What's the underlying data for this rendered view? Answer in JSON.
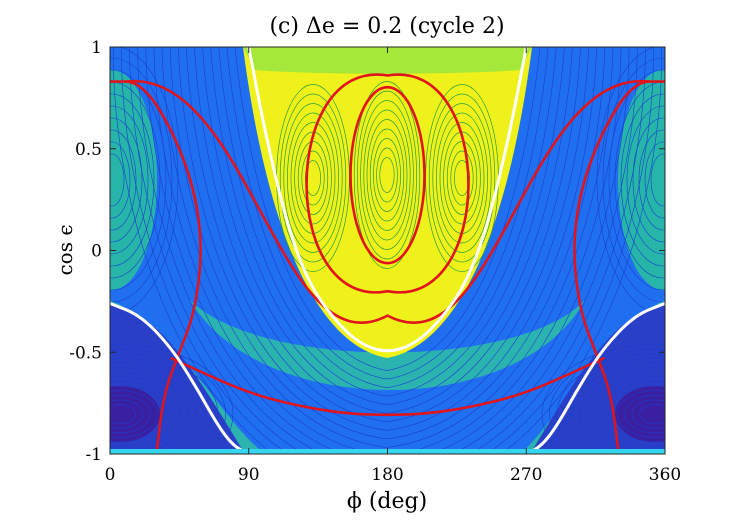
{
  "chart_data": {
    "type": "contour",
    "title": "(c) Δe = 0.2 (cycle 2)",
    "xlabel": "ϕ (deg)",
    "ylabel": "cos ϵ",
    "xlim": [
      0,
      360
    ],
    "ylim": [
      -1,
      1
    ],
    "xticks": [
      0,
      90,
      180,
      270,
      360
    ],
    "xtick_labels": [
      "0",
      "90",
      "180",
      "270",
      "360"
    ],
    "yticks": [
      -1,
      -0.5,
      0,
      0.5,
      1
    ],
    "ytick_labels": [
      "-1",
      "-0.5",
      "0",
      "0.5",
      "1"
    ],
    "grid": false,
    "colors": {
      "background_fill": "#2bb3b0",
      "low_well": "#3a1fa0",
      "band": "#1f6ff0",
      "inner_region": "#eef21a",
      "contour_line": "#1a3fd0",
      "separatrix": "#e0141c",
      "boundary": "#ffffff"
    },
    "forbidden_boundary": {
      "upper_x": [
        90,
        100,
        115,
        130,
        150,
        165,
        180,
        195,
        210,
        230,
        245,
        260,
        270
      ],
      "upper_y": [
        1.0,
        0.6,
        0.12,
        -0.18,
        -0.38,
        -0.47,
        -0.5,
        -0.47,
        -0.38,
        -0.18,
        0.12,
        0.6,
        1.0
      ],
      "lower_left_x": [
        0,
        20,
        40,
        55,
        70,
        80,
        90
      ],
      "lower_left_y": [
        -0.26,
        -0.32,
        -0.48,
        -0.66,
        -0.86,
        -0.96,
        -1.0
      ],
      "lower_right_x": [
        270,
        280,
        290,
        305,
        320,
        340,
        360
      ],
      "lower_right_y": [
        -1.0,
        -0.96,
        -0.86,
        -0.66,
        -0.48,
        -0.32,
        -0.26
      ]
    },
    "separatrices": [
      {
        "x": [
          40,
          60,
          90,
          120,
          150,
          180,
          210,
          240,
          270,
          300,
          320
        ],
        "y": [
          -0.53,
          -0.6,
          -0.7,
          -0.76,
          -0.8,
          -0.81,
          -0.8,
          -0.76,
          -0.7,
          -0.6,
          -0.53
        ]
      },
      {
        "x": [
          0,
          20,
          40,
          55,
          60,
          55,
          45,
          35,
          30
        ],
        "y": [
          0.83,
          0.83,
          0.6,
          0.3,
          0.0,
          -0.3,
          -0.5,
          -0.7,
          -1.0
        ]
      },
      {
        "x": [
          360,
          340,
          320,
          305,
          300,
          305,
          315,
          325,
          330
        ],
        "y": [
          0.83,
          0.83,
          0.6,
          0.3,
          0.0,
          -0.3,
          -0.5,
          -0.7,
          -1.0
        ]
      }
    ]
  }
}
